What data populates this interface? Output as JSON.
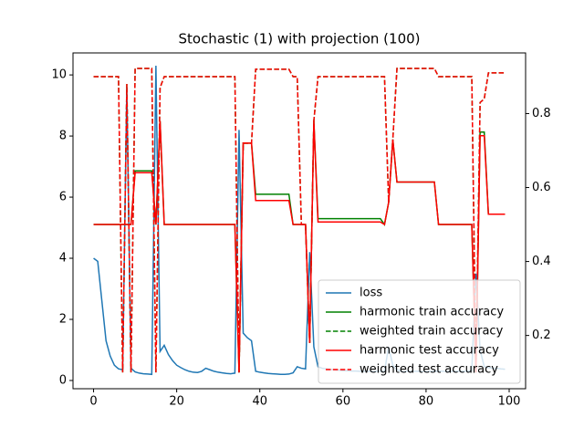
{
  "chart_data": {
    "type": "line",
    "title": "Stochastic (1) with projection (100)",
    "x": [
      0,
      1,
      2,
      3,
      4,
      5,
      6,
      7,
      8,
      9,
      10,
      11,
      12,
      13,
      14,
      15,
      16,
      17,
      18,
      19,
      20,
      21,
      22,
      23,
      24,
      25,
      26,
      27,
      28,
      29,
      30,
      31,
      32,
      33,
      34,
      35,
      36,
      37,
      38,
      39,
      40,
      41,
      42,
      43,
      44,
      45,
      46,
      47,
      48,
      49,
      50,
      51,
      52,
      53,
      54,
      55,
      56,
      57,
      58,
      59,
      60,
      61,
      62,
      63,
      64,
      65,
      66,
      67,
      68,
      69,
      70,
      71,
      72,
      73,
      74,
      75,
      76,
      77,
      78,
      79,
      80,
      81,
      82,
      83,
      84,
      85,
      86,
      87,
      88,
      89,
      90,
      91,
      92,
      93,
      94,
      95,
      96,
      97,
      98,
      99
    ],
    "xlim": [
      -4.95,
      103.95
    ],
    "xticks": [
      0,
      20,
      40,
      60,
      80,
      100
    ],
    "ylim": [
      -0.27,
      10.72
    ],
    "yticks": [
      0,
      2,
      4,
      6,
      8,
      10
    ],
    "y2lim": [
      0.056,
      0.964
    ],
    "y2ticks": [
      0.2,
      0.4,
      0.6,
      0.8
    ],
    "legend": "lower right",
    "series": [
      {
        "name": "loss",
        "color": "#1f77b4",
        "style": "solid",
        "values": [
          4.0,
          3.9,
          2.6,
          1.3,
          0.8,
          0.5,
          0.38,
          0.35,
          9.6,
          0.4,
          0.28,
          0.24,
          0.22,
          0.21,
          0.2,
          10.3,
          0.95,
          1.15,
          0.85,
          0.65,
          0.5,
          0.42,
          0.35,
          0.3,
          0.27,
          0.26,
          0.3,
          0.4,
          0.35,
          0.3,
          0.27,
          0.25,
          0.23,
          0.22,
          0.24,
          8.2,
          1.55,
          1.4,
          1.3,
          0.3,
          0.27,
          0.25,
          0.23,
          0.22,
          0.21,
          0.2,
          0.2,
          0.21,
          0.25,
          0.45,
          0.4,
          0.38,
          4.2,
          1.1,
          0.45,
          0.4,
          0.38,
          0.36,
          0.35,
          0.34,
          0.32,
          0.32,
          0.31,
          0.31,
          0.3,
          0.3,
          0.3,
          0.3,
          0.3,
          0.3,
          0.3,
          1.1,
          0.5,
          0.35,
          0.3,
          0.3,
          0.3,
          0.3,
          0.3,
          0.3,
          0.3,
          0.3,
          0.3,
          0.3,
          0.3,
          0.3,
          0.3,
          0.3,
          0.3,
          0.3,
          0.3,
          0.32,
          3.5,
          1.0,
          0.45,
          0.42,
          0.4,
          0.4,
          0.38,
          0.37
        ]
      },
      {
        "name": "harmonic train accuracy",
        "color": "#008000",
        "style": "solid",
        "axis": "y2",
        "values": [
          0.5,
          0.5,
          0.5,
          0.5,
          0.5,
          0.5,
          0.5,
          0.5,
          0.5,
          0.5,
          0.645,
          0.645,
          0.645,
          0.645,
          0.645,
          0.5,
          0.78,
          0.5,
          0.5,
          0.5,
          0.5,
          0.5,
          0.5,
          0.5,
          0.5,
          0.5,
          0.5,
          0.5,
          0.5,
          0.5,
          0.5,
          0.5,
          0.5,
          0.5,
          0.5,
          0.1,
          0.72,
          0.72,
          0.72,
          0.582,
          0.582,
          0.582,
          0.582,
          0.582,
          0.582,
          0.582,
          0.582,
          0.582,
          0.5,
          0.5,
          0.5,
          0.5,
          0.18,
          0.78,
          0.516,
          0.516,
          0.516,
          0.516,
          0.516,
          0.516,
          0.516,
          0.516,
          0.516,
          0.516,
          0.516,
          0.516,
          0.516,
          0.516,
          0.516,
          0.516,
          0.5,
          0.56,
          0.73,
          0.615,
          0.615,
          0.615,
          0.615,
          0.615,
          0.615,
          0.615,
          0.615,
          0.615,
          0.615,
          0.5,
          0.5,
          0.5,
          0.5,
          0.5,
          0.5,
          0.5,
          0.5,
          0.5,
          0.1,
          0.75,
          0.75,
          0.528,
          0.528,
          0.528,
          0.528,
          0.528
        ]
      },
      {
        "name": "weighted train accuracy",
        "color": "#008000",
        "style": "dashed",
        "axis": "y2",
        "values": [
          0.9,
          0.9,
          0.9,
          0.9,
          0.9,
          0.9,
          0.9,
          0.1,
          0.88,
          0.1,
          0.922,
          0.922,
          0.922,
          0.922,
          0.922,
          0.1,
          0.87,
          0.9,
          0.9,
          0.9,
          0.9,
          0.9,
          0.9,
          0.9,
          0.9,
          0.9,
          0.9,
          0.9,
          0.9,
          0.9,
          0.9,
          0.9,
          0.9,
          0.9,
          0.9,
          0.1,
          0.72,
          0.72,
          0.72,
          0.92,
          0.92,
          0.92,
          0.92,
          0.92,
          0.92,
          0.92,
          0.92,
          0.92,
          0.9,
          0.9,
          0.5,
          0.5,
          0.18,
          0.78,
          0.9,
          0.9,
          0.9,
          0.9,
          0.9,
          0.9,
          0.9,
          0.9,
          0.9,
          0.9,
          0.9,
          0.9,
          0.9,
          0.9,
          0.9,
          0.9,
          0.9,
          0.56,
          0.73,
          0.922,
          0.922,
          0.922,
          0.922,
          0.922,
          0.922,
          0.922,
          0.922,
          0.922,
          0.922,
          0.9,
          0.9,
          0.9,
          0.9,
          0.9,
          0.9,
          0.9,
          0.9,
          0.9,
          0.1,
          0.83,
          0.84,
          0.91,
          0.91,
          0.91,
          0.91,
          0.91
        ]
      },
      {
        "name": "harmonic test accuracy",
        "color": "#ff0000",
        "style": "solid",
        "axis": "y2",
        "values": [
          0.5,
          0.5,
          0.5,
          0.5,
          0.5,
          0.5,
          0.5,
          0.5,
          0.5,
          0.5,
          0.64,
          0.64,
          0.64,
          0.64,
          0.64,
          0.5,
          0.78,
          0.5,
          0.5,
          0.5,
          0.5,
          0.5,
          0.5,
          0.5,
          0.5,
          0.5,
          0.5,
          0.5,
          0.5,
          0.5,
          0.5,
          0.5,
          0.5,
          0.5,
          0.5,
          0.1,
          0.72,
          0.72,
          0.72,
          0.565,
          0.565,
          0.565,
          0.565,
          0.565,
          0.565,
          0.565,
          0.565,
          0.565,
          0.5,
          0.5,
          0.5,
          0.5,
          0.18,
          0.78,
          0.507,
          0.507,
          0.507,
          0.507,
          0.507,
          0.507,
          0.507,
          0.507,
          0.507,
          0.507,
          0.507,
          0.507,
          0.507,
          0.507,
          0.507,
          0.507,
          0.5,
          0.56,
          0.73,
          0.615,
          0.615,
          0.615,
          0.615,
          0.615,
          0.615,
          0.615,
          0.615,
          0.615,
          0.615,
          0.5,
          0.5,
          0.5,
          0.5,
          0.5,
          0.5,
          0.5,
          0.5,
          0.5,
          0.1,
          0.74,
          0.74,
          0.528,
          0.528,
          0.528,
          0.528,
          0.528
        ]
      },
      {
        "name": "weighted test accuracy",
        "color": "#ff0000",
        "style": "dashed",
        "axis": "y2",
        "values": [
          0.9,
          0.9,
          0.9,
          0.9,
          0.9,
          0.9,
          0.9,
          0.1,
          0.88,
          0.1,
          0.922,
          0.922,
          0.922,
          0.922,
          0.922,
          0.1,
          0.87,
          0.9,
          0.9,
          0.9,
          0.9,
          0.9,
          0.9,
          0.9,
          0.9,
          0.9,
          0.9,
          0.9,
          0.9,
          0.9,
          0.9,
          0.9,
          0.9,
          0.9,
          0.9,
          0.1,
          0.72,
          0.72,
          0.72,
          0.92,
          0.92,
          0.92,
          0.92,
          0.92,
          0.92,
          0.92,
          0.92,
          0.92,
          0.9,
          0.9,
          0.5,
          0.5,
          0.18,
          0.78,
          0.9,
          0.9,
          0.9,
          0.9,
          0.9,
          0.9,
          0.9,
          0.9,
          0.9,
          0.9,
          0.9,
          0.9,
          0.9,
          0.9,
          0.9,
          0.9,
          0.9,
          0.56,
          0.73,
          0.922,
          0.922,
          0.922,
          0.922,
          0.922,
          0.922,
          0.922,
          0.922,
          0.922,
          0.922,
          0.9,
          0.9,
          0.9,
          0.9,
          0.9,
          0.9,
          0.9,
          0.9,
          0.9,
          0.1,
          0.83,
          0.84,
          0.91,
          0.91,
          0.91,
          0.91,
          0.91
        ]
      }
    ]
  }
}
